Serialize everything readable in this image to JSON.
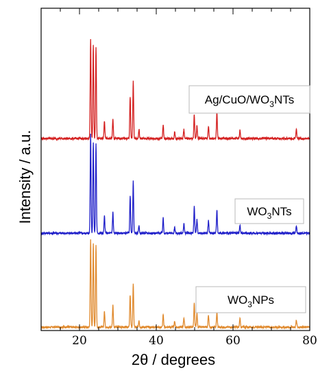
{
  "chart_data": {
    "type": "line",
    "xlabel": "2θ / degrees",
    "ylabel": "Intensity / a.u.",
    "xlim": [
      10,
      80
    ],
    "xticks": [
      20,
      40,
      60,
      80
    ],
    "yticks_shown": false,
    "grid": false,
    "series": [
      {
        "label_main": "WO",
        "label_sub": "3",
        "label_rest": "NPs",
        "color": "#e08a2e",
        "peaks": [
          {
            "x": 22.9,
            "h": 1.0
          },
          {
            "x": 23.6,
            "h": 0.95
          },
          {
            "x": 24.3,
            "h": 0.93
          },
          {
            "x": 26.5,
            "h": 0.18
          },
          {
            "x": 28.7,
            "h": 0.25
          },
          {
            "x": 33.2,
            "h": 0.37
          },
          {
            "x": 34.0,
            "h": 0.5
          },
          {
            "x": 35.5,
            "h": 0.08
          },
          {
            "x": 41.8,
            "h": 0.14
          },
          {
            "x": 44.8,
            "h": 0.07
          },
          {
            "x": 47.2,
            "h": 0.11
          },
          {
            "x": 49.9,
            "h": 0.27
          },
          {
            "x": 50.6,
            "h": 0.16
          },
          {
            "x": 53.6,
            "h": 0.14
          },
          {
            "x": 55.8,
            "h": 0.17
          },
          {
            "x": 61.8,
            "h": 0.1
          },
          {
            "x": 76.5,
            "h": 0.08
          }
        ]
      },
      {
        "label_main": "WO",
        "label_sub": "3",
        "label_rest": "NTs",
        "color": "#1f1fc9",
        "peaks": [
          {
            "x": 22.9,
            "h": 1.0
          },
          {
            "x": 23.6,
            "h": 0.92
          },
          {
            "x": 24.3,
            "h": 0.9
          },
          {
            "x": 26.5,
            "h": 0.17
          },
          {
            "x": 28.7,
            "h": 0.21
          },
          {
            "x": 33.2,
            "h": 0.37
          },
          {
            "x": 34.0,
            "h": 0.52
          },
          {
            "x": 35.5,
            "h": 0.07
          },
          {
            "x": 41.8,
            "h": 0.15
          },
          {
            "x": 44.8,
            "h": 0.06
          },
          {
            "x": 47.2,
            "h": 0.1
          },
          {
            "x": 49.9,
            "h": 0.27
          },
          {
            "x": 50.6,
            "h": 0.14
          },
          {
            "x": 53.6,
            "h": 0.13
          },
          {
            "x": 55.8,
            "h": 0.24
          },
          {
            "x": 61.8,
            "h": 0.08
          },
          {
            "x": 76.5,
            "h": 0.08
          }
        ]
      },
      {
        "label_main": "Ag/CuO/WO",
        "label_sub": "3",
        "label_rest": "NTs",
        "color": "#d42020",
        "peaks": [
          {
            "x": 22.9,
            "h": 1.0
          },
          {
            "x": 23.6,
            "h": 0.94
          },
          {
            "x": 24.3,
            "h": 0.92
          },
          {
            "x": 26.5,
            "h": 0.18
          },
          {
            "x": 28.7,
            "h": 0.19
          },
          {
            "x": 33.2,
            "h": 0.42
          },
          {
            "x": 34.0,
            "h": 0.58
          },
          {
            "x": 35.5,
            "h": 0.09
          },
          {
            "x": 41.8,
            "h": 0.14
          },
          {
            "x": 44.8,
            "h": 0.07
          },
          {
            "x": 47.2,
            "h": 0.09
          },
          {
            "x": 49.9,
            "h": 0.24
          },
          {
            "x": 50.6,
            "h": 0.13
          },
          {
            "x": 53.6,
            "h": 0.13
          },
          {
            "x": 55.8,
            "h": 0.26
          },
          {
            "x": 61.8,
            "h": 0.08
          },
          {
            "x": 76.5,
            "h": 0.09
          }
        ]
      }
    ]
  }
}
